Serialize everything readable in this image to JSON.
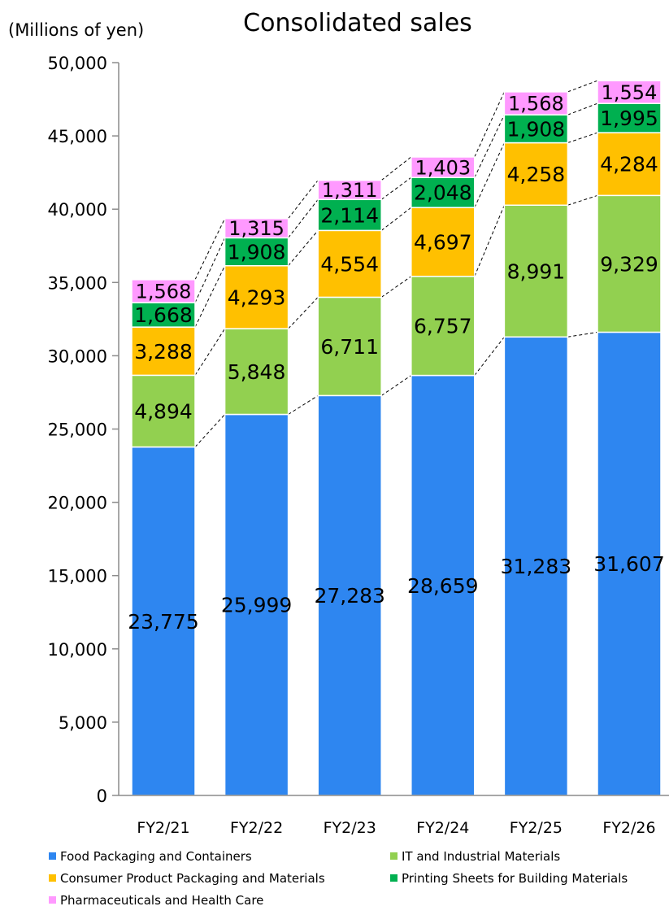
{
  "chart_data": {
    "type": "bar",
    "stacked": true,
    "title": "Consolidated sales",
    "unit_label": "(Millions of yen)",
    "categories": [
      "FY2/21",
      "FY2/22",
      "FY2/23",
      "FY2/24",
      "FY2/25",
      "FY2/26"
    ],
    "ylim": [
      0,
      50000
    ],
    "yticks": [
      0,
      5000,
      10000,
      15000,
      20000,
      25000,
      30000,
      35000,
      40000,
      45000,
      50000
    ],
    "ytick_labels": [
      "0",
      "5,000",
      "10,000",
      "15,000",
      "20,000",
      "25,000",
      "30,000",
      "35,000",
      "40,000",
      "45,000",
      "50,000"
    ],
    "grid": false,
    "connector_lines": true,
    "legend_position": "bottom",
    "series": [
      {
        "name": "Food Packaging and Containers",
        "color": "#2E86F0",
        "values": [
          23775,
          25999,
          27283,
          28659,
          31283,
          31607
        ],
        "labels": [
          "23,775",
          "25,999",
          "27,283",
          "28,659",
          "31,283",
          "31,607"
        ]
      },
      {
        "name": "IT and Industrial Materials",
        "color": "#92D050",
        "values": [
          4894,
          5848,
          6711,
          6757,
          8991,
          9329
        ],
        "labels": [
          "4,894",
          "5,848",
          "6,711",
          "6,757",
          "8,991",
          "9,329"
        ]
      },
      {
        "name": "Consumer Product Packaging and Materials",
        "color": "#FFC000",
        "values": [
          3288,
          4293,
          4554,
          4697,
          4258,
          4284
        ],
        "labels": [
          "3,288",
          "4,293",
          "4,554",
          "4,697",
          "4,258",
          "4,284"
        ]
      },
      {
        "name": "Printing Sheets for Building Materials",
        "color": "#00B050",
        "values": [
          1668,
          1908,
          2114,
          2048,
          1908,
          1995
        ],
        "labels": [
          "1,668",
          "1,908",
          "2,114",
          "2,048",
          "1,908",
          "1,995"
        ]
      },
      {
        "name": "Pharmaceuticals and Health Care",
        "color": "#FF99FF",
        "values": [
          1568,
          1315,
          1311,
          1403,
          1568,
          1554
        ],
        "labels": [
          "1,568",
          "1,315",
          "1,311",
          "1,403",
          "1,568",
          "1,554"
        ]
      }
    ]
  }
}
